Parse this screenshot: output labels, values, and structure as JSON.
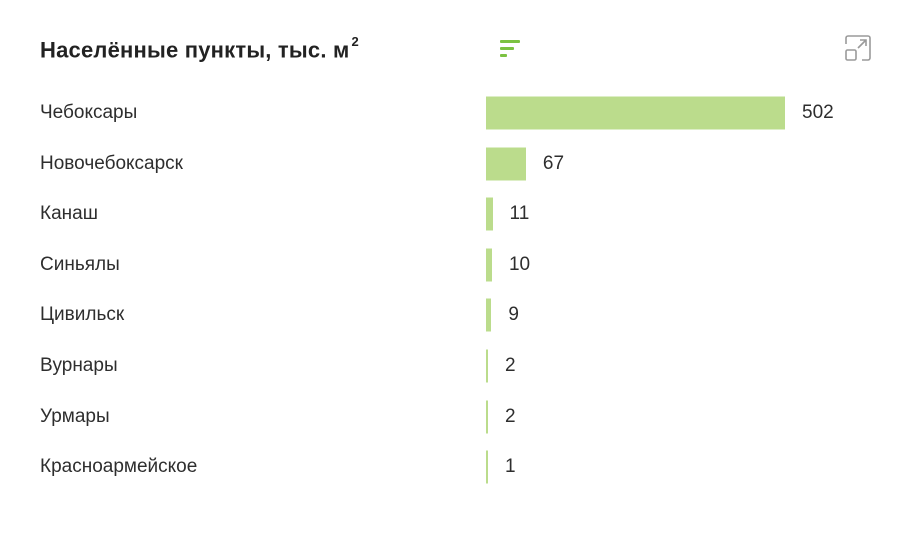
{
  "header": {
    "title": "Населённые пункты, тыс. м",
    "title_superscript": "2",
    "sort_icon": "sort-lines-icon",
    "expand_icon": "expand-icon"
  },
  "colors": {
    "bar": "#bbdc8c",
    "accent": "#7cc242",
    "icon_gray": "#9a9a9a"
  },
  "chart_data": {
    "type": "bar",
    "orientation": "horizontal",
    "title": "Населённые пункты, тыс. м²",
    "categories": [
      "Чебоксары",
      "Новочебоксарск",
      "Канаш",
      "Синьялы",
      "Цивильск",
      "Вурнары",
      "Урмары",
      "Красноармейское"
    ],
    "values": [
      502,
      67,
      11,
      10,
      9,
      2,
      2,
      1
    ],
    "value_labels": [
      "502",
      "67",
      "11",
      "10",
      "9",
      "2",
      "2",
      "1"
    ],
    "xlim": [
      0,
      502
    ],
    "grid": false,
    "legend": "none"
  }
}
